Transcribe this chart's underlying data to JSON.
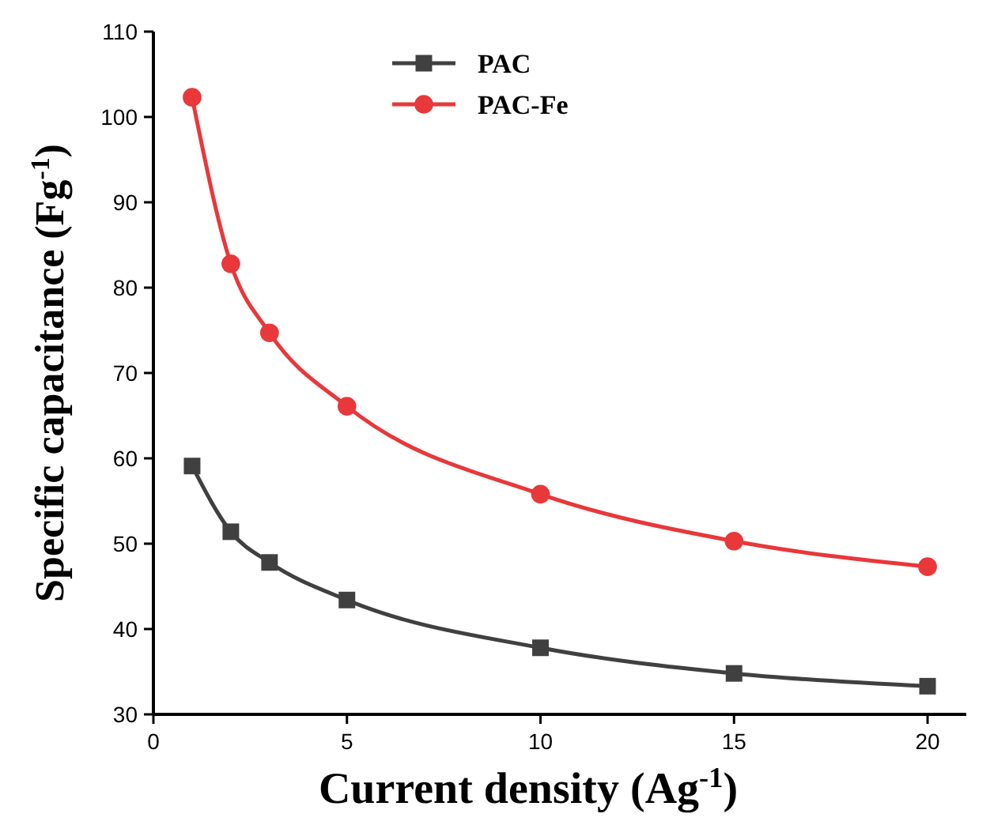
{
  "chart_data": {
    "type": "line",
    "xlabel": "Current density (Ag$^{-1}$)",
    "ylabel": "Specific capacitance (Fg$^{-1}$)",
    "x": [
      1,
      2,
      3,
      5,
      10,
      15,
      20
    ],
    "series": [
      {
        "name": "PAC",
        "color": "#404040",
        "values": [
          59.1,
          51.4,
          47.8,
          43.4,
          37.8,
          34.8,
          33.3
        ],
        "marker": "square"
      },
      {
        "name": "PAC-Fe",
        "color": "#e8383a",
        "values": [
          102.3,
          82.8,
          74.7,
          66.1,
          55.8,
          50.3,
          47.3
        ],
        "marker": "circle"
      }
    ],
    "xlim": [
      0,
      21
    ],
    "xticks": [
      0,
      5,
      10,
      15,
      20
    ],
    "ylim": [
      30,
      110
    ],
    "yticks": [
      30,
      40,
      50,
      60,
      70,
      80,
      90,
      100,
      110
    ],
    "legend": "top",
    "grid": false,
    "line_style": "solid"
  }
}
